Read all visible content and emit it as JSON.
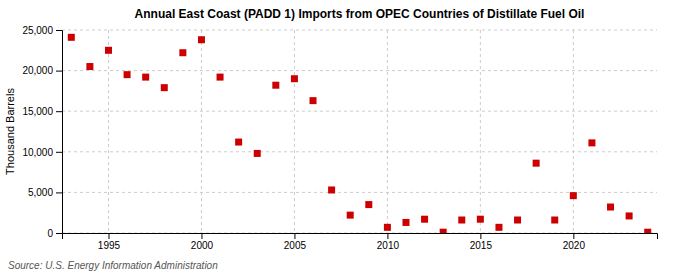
{
  "chart_data": {
    "type": "scatter",
    "title": "Annual East Coast (PADD 1) Imports from OPEC Countries of Distillate Fuel Oil",
    "ylabel": "Thousand Barrels",
    "source": "Source: U.S. Energy Information Administration",
    "color": "#cc0000",
    "marker": "square",
    "grid": true,
    "xlim": [
      1992.5,
      2024.5
    ],
    "xticks": [
      1995,
      2000,
      2005,
      2010,
      2015,
      2020
    ],
    "ylim": [
      0,
      25000
    ],
    "yticks": [
      0,
      {
        "value": 5000,
        "label": "5,000"
      },
      {
        "value": 10000,
        "label": "10,000"
      },
      {
        "value": 15000,
        "label": "15,000"
      },
      {
        "value": 20000,
        "label": "20,000"
      },
      {
        "value": 25000,
        "label": "25,000"
      }
    ],
    "x": [
      1993,
      1994,
      1995,
      1996,
      1997,
      1998,
      1999,
      2000,
      2001,
      2002,
      2003,
      2004,
      2005,
      2006,
      2007,
      2008,
      2009,
      2010,
      2011,
      2012,
      2013,
      2014,
      2015,
      2016,
      2017,
      2018,
      2019,
      2020,
      2021,
      2022,
      2023,
      2024
    ],
    "values": [
      24100,
      20500,
      22500,
      19500,
      19200,
      17900,
      22200,
      23800,
      19200,
      11200,
      9800,
      18200,
      19000,
      16300,
      5300,
      2200,
      3500,
      700,
      1300,
      1700,
      100,
      1600,
      1700,
      700,
      1600,
      8600,
      1600,
      4600,
      11100,
      3200,
      2100,
      100
    ]
  }
}
